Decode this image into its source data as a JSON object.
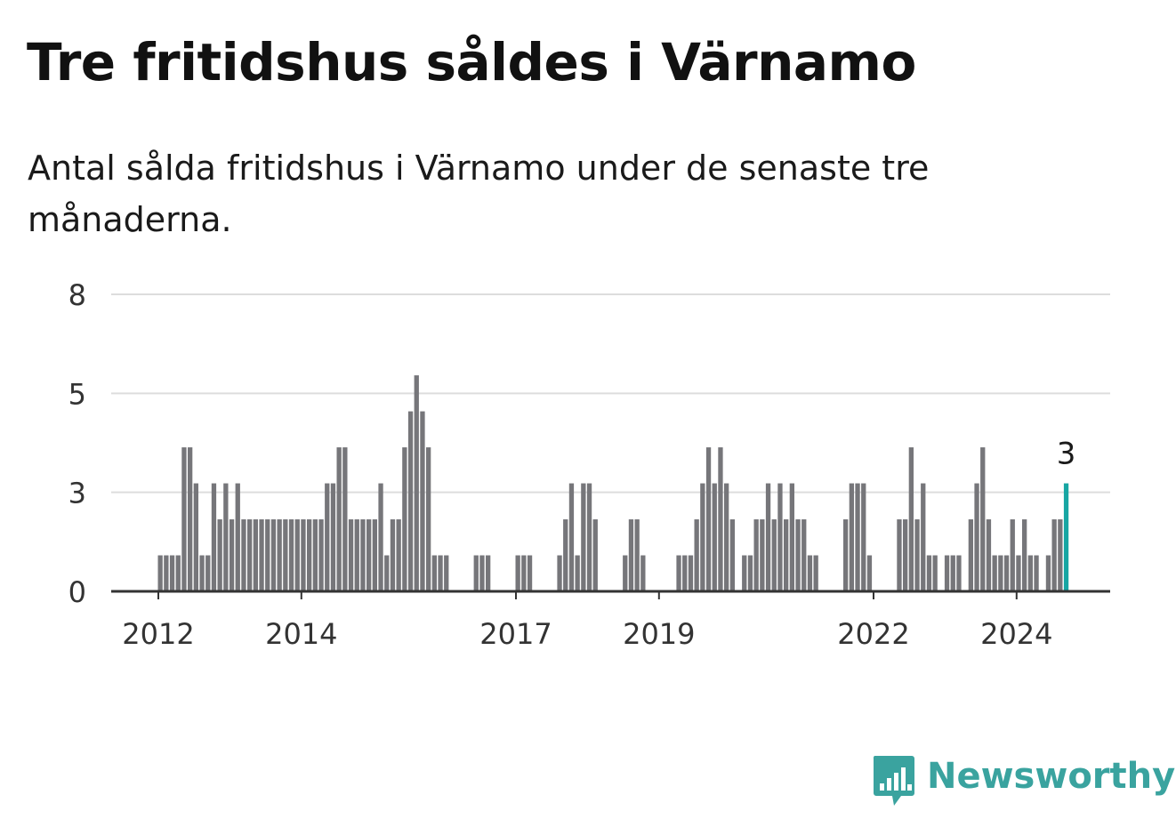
{
  "title": "Tre fritidshus såldes i Värnamo",
  "subtitle": "Antal sålda fritidshus i Värnamo under de senaste tre månaderna.",
  "brand": {
    "name": "Newsworthy",
    "icon": "newsworthy-logo-icon"
  },
  "colors": {
    "bar": "#76767a",
    "highlight": "#17a6a3",
    "grid": "#dddddd",
    "axis": "#333333",
    "brand": "#3aa39f"
  },
  "chart_data": {
    "type": "bar",
    "start": "2012-01",
    "ylim": [
      0,
      8
    ],
    "yticks": [
      {
        "label": "0",
        "value": 0
      },
      {
        "label": "3",
        "value": 2.75
      },
      {
        "label": "5",
        "value": 5.5
      },
      {
        "label": "8",
        "value": 8.25
      }
    ],
    "xticks": [
      {
        "label": "2012",
        "index": 0
      },
      {
        "label": "2014",
        "index": 24
      },
      {
        "label": "2017",
        "index": 60
      },
      {
        "label": "2019",
        "index": 84
      },
      {
        "label": "2022",
        "index": 120
      },
      {
        "label": "2024",
        "index": 144
      }
    ],
    "grid": true,
    "values": [
      1,
      1,
      1,
      1,
      4,
      4,
      3,
      1,
      1,
      3,
      2,
      3,
      2,
      3,
      2,
      2,
      2,
      2,
      2,
      2,
      2,
      2,
      2,
      2,
      2,
      2,
      2,
      2,
      3,
      3,
      4,
      4,
      2,
      2,
      2,
      2,
      2,
      3,
      1,
      2,
      2,
      4,
      5,
      6,
      5,
      4,
      1,
      1,
      1,
      0,
      0,
      0,
      0,
      1,
      1,
      1,
      0,
      0,
      0,
      0,
      1,
      1,
      1,
      0,
      0,
      0,
      0,
      1,
      2,
      3,
      1,
      3,
      3,
      2,
      0,
      0,
      0,
      0,
      1,
      2,
      2,
      1,
      0,
      0,
      0,
      0,
      0,
      1,
      1,
      1,
      2,
      3,
      4,
      3,
      4,
      3,
      2,
      0,
      1,
      1,
      2,
      2,
      3,
      2,
      3,
      2,
      3,
      2,
      2,
      1,
      1,
      0,
      0,
      0,
      0,
      2,
      3,
      3,
      3,
      1,
      0,
      0,
      0,
      0,
      2,
      2,
      4,
      2,
      3,
      1,
      1,
      0,
      1,
      1,
      1,
      0,
      2,
      3,
      4,
      2,
      1,
      1,
      1,
      2,
      1,
      2,
      1,
      1,
      0,
      1,
      2,
      2,
      3
    ],
    "highlight_label": "3"
  }
}
